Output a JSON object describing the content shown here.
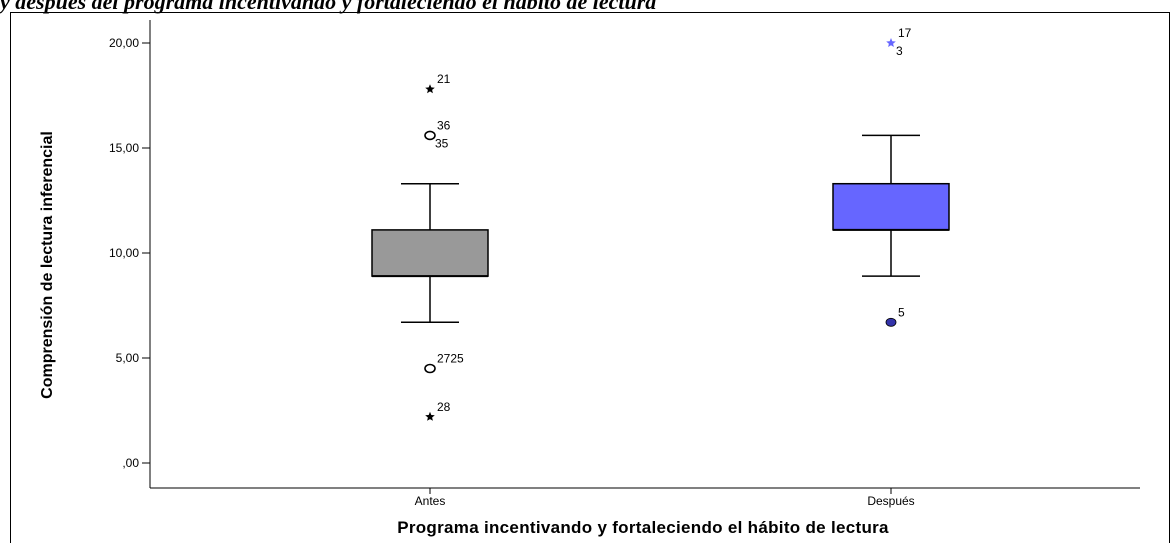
{
  "caption": "y después del programa incentivando y fortaleciendo el hábito de lectura",
  "chart_data": {
    "type": "box",
    "ylabel": "Comprensión de lectura inferencial",
    "xlabel": "Programa incentivando y fortaleciendo el hábito de lectura",
    "ylim": [
      -1,
      21
    ],
    "yticks": [
      {
        "value": 0,
        "label": ",00"
      },
      {
        "value": 5,
        "label": "5,00"
      },
      {
        "value": 10,
        "label": "10,00"
      },
      {
        "value": 15,
        "label": "15,00"
      },
      {
        "value": 20,
        "label": "20,00"
      }
    ],
    "categories": [
      "Antes",
      "Después"
    ],
    "boxes": [
      {
        "name": "Antes",
        "color": "#999999",
        "whisker_low": 6.7,
        "q1": 8.9,
        "median": 8.9,
        "q3": 11.1,
        "whisker_high": 13.3,
        "outliers": [
          {
            "value": 17.8,
            "marker": "star",
            "label": "21"
          },
          {
            "value": 15.6,
            "marker": "circle",
            "label": "36",
            "label2": "35"
          },
          {
            "value": 4.5,
            "marker": "circle",
            "label": "2725"
          },
          {
            "value": 2.2,
            "marker": "star",
            "label": "28"
          }
        ]
      },
      {
        "name": "Después",
        "color": "#6666ff",
        "whisker_low": 8.9,
        "q1": 11.1,
        "median": 11.1,
        "q3": 13.3,
        "whisker_high": 15.6,
        "outliers": [
          {
            "value": 20.0,
            "marker": "star",
            "label": "17",
            "label2": "3",
            "color": "#6666ff"
          },
          {
            "value": 6.7,
            "marker": "dot",
            "label": "5",
            "color": "#3333aa"
          }
        ]
      }
    ]
  }
}
